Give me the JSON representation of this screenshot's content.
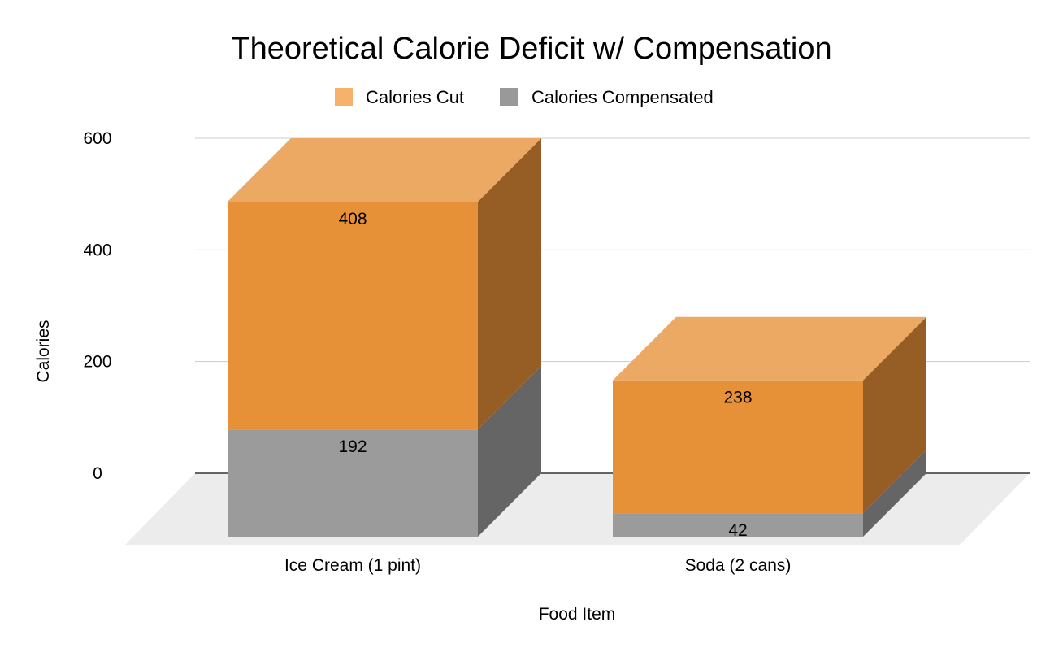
{
  "chart_data": {
    "type": "bar",
    "stacked": true,
    "three_d": true,
    "title": "Theoretical Calorie Deficit w/ Compensation",
    "xlabel": "Food Item",
    "ylabel": "Calories",
    "categories": [
      "Ice Cream (1 pint)",
      "Soda (2 cans)"
    ],
    "series": [
      {
        "name": "Calories Compensated",
        "values": [
          192,
          42
        ],
        "color": "#9b9b9b"
      },
      {
        "name": "Calories Cut",
        "values": [
          408,
          238
        ],
        "color": "#e69138"
      }
    ],
    "legend": {
      "placement": "top",
      "items": [
        {
          "label": "Calories Cut",
          "color": "#f6b26b"
        },
        {
          "label": "Calories Compensated",
          "color": "#999999"
        }
      ]
    },
    "yticks": [
      "0",
      "200",
      "400",
      "600"
    ],
    "ylim": [
      0,
      600
    ],
    "grid": true
  }
}
